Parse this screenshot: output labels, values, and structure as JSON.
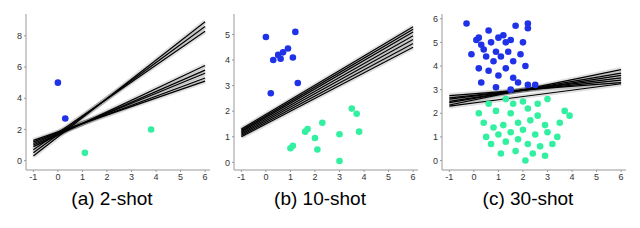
{
  "chart_data": [
    {
      "type": "scatter",
      "title": "(a) 2-shot",
      "xlim": [
        -1.3,
        6.2
      ],
      "xticks": [
        -1,
        0,
        1,
        2,
        3,
        4,
        5,
        6
      ],
      "ylim": [
        -0.6,
        9.4
      ],
      "yticks": [
        0,
        2,
        4,
        6,
        8
      ],
      "grid": false,
      "series": [
        {
          "type": "scatter",
          "color": "#1f32e8",
          "x": [
            0,
            0.3
          ],
          "values": [
            5,
            2.7
          ]
        },
        {
          "type": "scatter",
          "color": "#33f0a0",
          "x": [
            1.1,
            3.8
          ],
          "values": [
            0.5,
            2
          ]
        },
        {
          "type": "line",
          "color": "#000000",
          "x": [
            -1,
            6
          ],
          "values": [
            0.3,
            8.9
          ]
        },
        {
          "type": "line",
          "color": "#000000",
          "x": [
            -1,
            6
          ],
          "values": [
            0.5,
            8.6
          ]
        },
        {
          "type": "line",
          "color": "#000000",
          "x": [
            -1,
            6
          ],
          "values": [
            0.7,
            8.3
          ]
        },
        {
          "type": "line",
          "color": "#000000",
          "x": [
            -1,
            6
          ],
          "values": [
            0.9,
            6.1
          ]
        },
        {
          "type": "line",
          "color": "#000000",
          "x": [
            -1,
            6
          ],
          "values": [
            1.0,
            5.8
          ]
        },
        {
          "type": "line",
          "color": "#000000",
          "x": [
            -1,
            6
          ],
          "values": [
            1.1,
            5.6
          ]
        },
        {
          "type": "line",
          "color": "#000000",
          "x": [
            -1,
            6
          ],
          "values": [
            1.2,
            5.3
          ]
        },
        {
          "type": "line",
          "color": "#000000",
          "x": [
            -1,
            6
          ],
          "values": [
            1.3,
            5.1
          ]
        }
      ]
    },
    {
      "type": "scatter",
      "title": "(b) 10-shot",
      "xlim": [
        -1.3,
        6.2
      ],
      "xticks": [
        -1,
        0,
        1,
        2,
        3,
        4,
        5,
        6
      ],
      "ylim": [
        -0.3,
        5.8
      ],
      "yticks": [
        0,
        1,
        2,
        3,
        4,
        5
      ],
      "grid": false,
      "series": [
        {
          "type": "scatter",
          "color": "#1f32e8",
          "x": [
            0,
            1.2,
            0.7,
            0.9,
            1.1,
            0.3,
            1.3,
            0.2,
            0.5,
            0.6
          ],
          "values": [
            4.9,
            5.1,
            4.3,
            4.45,
            4.1,
            4.0,
            3.1,
            2.7,
            4.2,
            4.05
          ]
        },
        {
          "type": "scatter",
          "color": "#33f0a0",
          "x": [
            3.5,
            3.7,
            2.3,
            1.7,
            2.0,
            1.0,
            1.1,
            2.1,
            3.0,
            3.8,
            3.0,
            1.6
          ],
          "values": [
            2.1,
            1.9,
            1.55,
            1.3,
            0.95,
            0.55,
            0.65,
            0.5,
            1.1,
            1.2,
            0.05,
            1.2
          ]
        },
        {
          "type": "line",
          "color": "#000000",
          "x": [
            -1,
            6
          ],
          "values": [
            1.0,
            4.5
          ]
        },
        {
          "type": "line",
          "color": "#000000",
          "x": [
            -1,
            6
          ],
          "values": [
            1.05,
            4.65
          ]
        },
        {
          "type": "line",
          "color": "#000000",
          "x": [
            -1,
            6
          ],
          "values": [
            1.1,
            4.8
          ]
        },
        {
          "type": "line",
          "color": "#000000",
          "x": [
            -1,
            6
          ],
          "values": [
            1.15,
            4.95
          ]
        },
        {
          "type": "line",
          "color": "#000000",
          "x": [
            -1,
            6
          ],
          "values": [
            1.2,
            5.1
          ]
        },
        {
          "type": "line",
          "color": "#000000",
          "x": [
            -1,
            6
          ],
          "values": [
            1.25,
            5.2
          ]
        },
        {
          "type": "line",
          "color": "#000000",
          "x": [
            -1,
            6
          ],
          "values": [
            1.3,
            5.3
          ]
        }
      ]
    },
    {
      "type": "scatter",
      "title": "(c) 30-shot",
      "xlim": [
        -1.3,
        6.2
      ],
      "xticks": [
        -1,
        0,
        1,
        2,
        3,
        4,
        5,
        6
      ],
      "ylim": [
        -0.4,
        6.2
      ],
      "yticks": [
        0,
        1,
        2,
        3,
        4,
        5,
        6
      ],
      "grid": false,
      "series": [
        {
          "type": "scatter",
          "color": "#1f32e8",
          "x": [
            -0.3,
            0.1,
            0.2,
            0.3,
            0.6,
            0.7,
            0.9,
            1.0,
            1.2,
            1.3,
            1.5,
            0.5,
            0.8,
            1.1,
            1.4,
            1.6,
            1.9,
            2.1,
            0.2,
            0.6,
            1.0,
            1.3,
            1.6,
            0.3,
            0.9,
            1.8,
            2.2,
            2.5,
            1.5,
            2.2,
            2.2,
            2.0,
            1.7,
            0.4,
            -0.1
          ],
          "values": [
            5.8,
            5.1,
            5.2,
            4.9,
            5.5,
            5.0,
            4.6,
            5.2,
            5.3,
            5.0,
            5.1,
            4.4,
            4.2,
            4.4,
            4.6,
            4.2,
            4.5,
            4.0,
            3.9,
            3.8,
            3.6,
            3.9,
            3.5,
            3.3,
            3.1,
            3.3,
            3.2,
            3.2,
            3.0,
            5.8,
            5.6,
            5.0,
            5.7,
            4.7,
            4.5
          ]
        },
        {
          "type": "scatter",
          "color": "#33f0a0",
          "x": [
            1.3,
            2.0,
            3.0,
            3.7,
            3.9,
            0.9,
            1.5,
            2.2,
            2.6,
            0.4,
            0.8,
            1.2,
            1.8,
            2.3,
            2.9,
            0.5,
            1.0,
            1.5,
            2.0,
            2.5,
            3.0,
            3.4,
            0.7,
            1.3,
            1.8,
            2.2,
            2.7,
            3.2,
            1.1,
            1.7,
            2.4,
            2.9,
            2.1,
            0.2,
            1.6,
            3.5,
            0.6,
            2.6
          ],
          "values": [
            2.6,
            2.5,
            2.6,
            2.1,
            1.9,
            2.1,
            2.0,
            2.2,
            1.9,
            1.6,
            1.4,
            1.5,
            1.6,
            1.7,
            1.5,
            1.0,
            1.1,
            1.2,
            1.3,
            1.1,
            1.2,
            1.0,
            0.7,
            0.8,
            0.9,
            0.7,
            0.6,
            0.7,
            0.3,
            0.4,
            0.3,
            0.2,
            0.0,
            2.0,
            2.4,
            1.6,
            2.4,
            2.4
          ]
        },
        {
          "type": "line",
          "color": "#000000",
          "x": [
            -1,
            6
          ],
          "values": [
            2.75,
            3.3
          ]
        },
        {
          "type": "line",
          "color": "#000000",
          "x": [
            -1,
            6
          ],
          "values": [
            2.65,
            3.4
          ]
        },
        {
          "type": "line",
          "color": "#000000",
          "x": [
            -1,
            6
          ],
          "values": [
            2.6,
            3.5
          ]
        },
        {
          "type": "line",
          "color": "#000000",
          "x": [
            -1,
            6
          ],
          "values": [
            2.5,
            3.6
          ]
        },
        {
          "type": "line",
          "color": "#000000",
          "x": [
            -1,
            6
          ],
          "values": [
            2.45,
            3.7
          ]
        },
        {
          "type": "line",
          "color": "#000000",
          "x": [
            -1,
            6
          ],
          "values": [
            2.35,
            3.85
          ]
        },
        {
          "type": "line",
          "color": "#000000",
          "x": [
            -1,
            6
          ],
          "values": [
            2.3,
            3.25
          ]
        }
      ]
    }
  ]
}
